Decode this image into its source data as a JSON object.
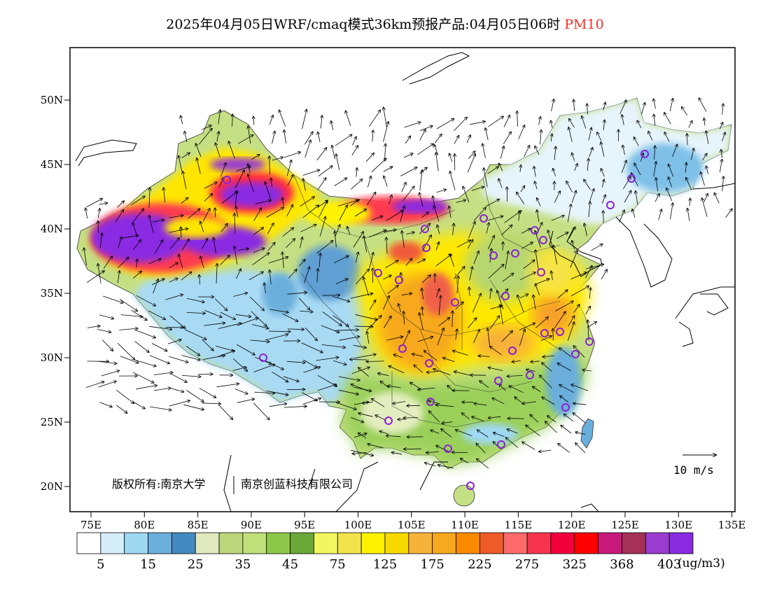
{
  "title": {
    "main": "2025年04月05日WRF/cmaq模式36km预报产品:04月05日06时",
    "species": "PM10",
    "species_color": "#ff2a2a"
  },
  "axes": {
    "lon_ticks": [
      "75E",
      "80E",
      "85E",
      "90E",
      "95E",
      "100E",
      "105E",
      "110E",
      "115E",
      "120E",
      "125E",
      "130E",
      "135E"
    ],
    "lat_ticks": [
      "50N",
      "45N",
      "40N",
      "35N",
      "30N",
      "25N",
      "20N"
    ]
  },
  "copyright": {
    "label": "版权所有:",
    "org1": "南京大学",
    "org2": "南京创蓝科技有限公司"
  },
  "wind_legend": {
    "label": "10 m/s"
  },
  "colorbar": {
    "colors": [
      "#ffffff",
      "#d6eefa",
      "#9fd8f3",
      "#6aaedc",
      "#4488c0",
      "#dfe9bd",
      "#bcd67c",
      "#c0e07c",
      "#8ec84a",
      "#6aa83a",
      "#f2f760",
      "#f2e34a",
      "#fff200",
      "#f9da00",
      "#f6b33c",
      "#f7a81e",
      "#fb8a00",
      "#ef5a2a",
      "#fc6a6a",
      "#f7344e",
      "#f2003c",
      "#ff0000",
      "#c8197a",
      "#a53058",
      "#9a3ccf",
      "#8a2be2"
    ],
    "labels": [
      "5",
      "15",
      "25",
      "35",
      "45",
      "75",
      "125",
      "175",
      "225",
      "275",
      "325",
      "368",
      "403"
    ],
    "units": "(ug/m3)"
  }
}
